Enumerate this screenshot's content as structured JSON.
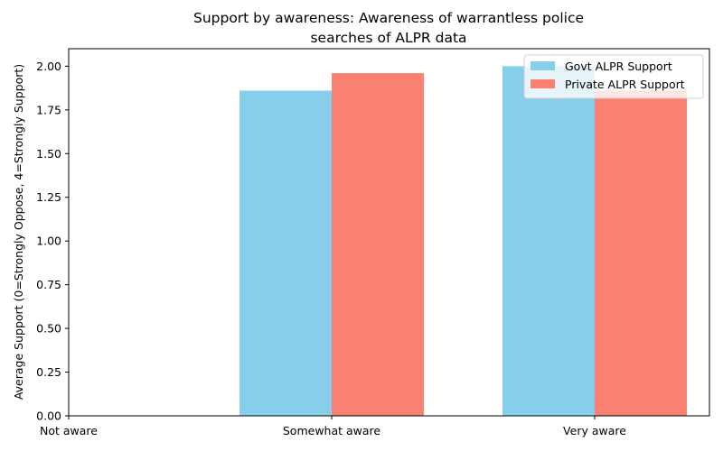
{
  "chart_data": {
    "type": "bar",
    "title_line1": "Support by awareness: Awareness of warrantless police",
    "title_line2": "searches of ALPR data",
    "xlabel": "",
    "ylabel": "Average Support (0=Strongly Oppose, 4=Strongly Support)",
    "categories": [
      "Not aware",
      "Somewhat aware",
      "Very aware"
    ],
    "series": [
      {
        "name": "Govt ALPR Support",
        "color": "#87CEEB",
        "values": [
          null,
          1.86,
          2.0
        ]
      },
      {
        "name": "Private ALPR Support",
        "color": "#FA8072",
        "values": [
          null,
          1.96,
          1.86
        ]
      }
    ],
    "ylim": [
      0,
      2.1
    ],
    "yticks": [
      "0.00",
      "0.25",
      "0.50",
      "0.75",
      "1.00",
      "1.25",
      "1.50",
      "1.75",
      "2.00"
    ],
    "grid": false,
    "legend_position": "top-right"
  }
}
